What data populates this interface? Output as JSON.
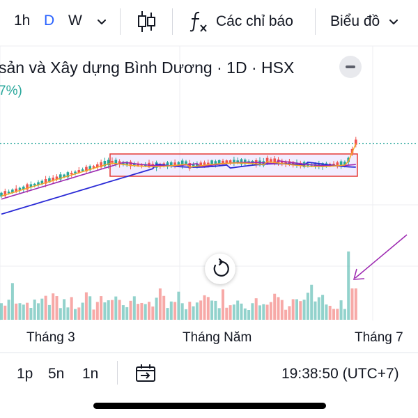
{
  "toolbar": {
    "timeframes": [
      "1h",
      "D",
      "W"
    ],
    "active_timeframe": "D",
    "indicators_label": "Các chỉ báo",
    "chart_type_label": "Biểu đồ"
  },
  "legend": {
    "title": "sản và Xây dựng Bình Dương · 1D · HSX",
    "change": "7%)"
  },
  "xaxis": {
    "labels": [
      "Tháng 3",
      "Tháng Năm",
      "Tháng 7"
    ]
  },
  "bottom": {
    "ranges": [
      "1p",
      "5n",
      "1n"
    ],
    "clock": "19:38:50 (UTC+7)"
  },
  "colors": {
    "up": "#26a69a",
    "down": "#ef5350",
    "ma_fast": "#f5a623",
    "ma_mid": "#9c27b0",
    "ma_slow": "#2a2ad6",
    "box": "#e53935",
    "annotation": "#9c27b0",
    "active": "#2962ff"
  },
  "icons": {
    "chevron": "chevron-down-icon",
    "candles": "candlestick-icon",
    "fx": "function-icon",
    "reset": "reset-icon",
    "replay": "replay-icon"
  }
}
